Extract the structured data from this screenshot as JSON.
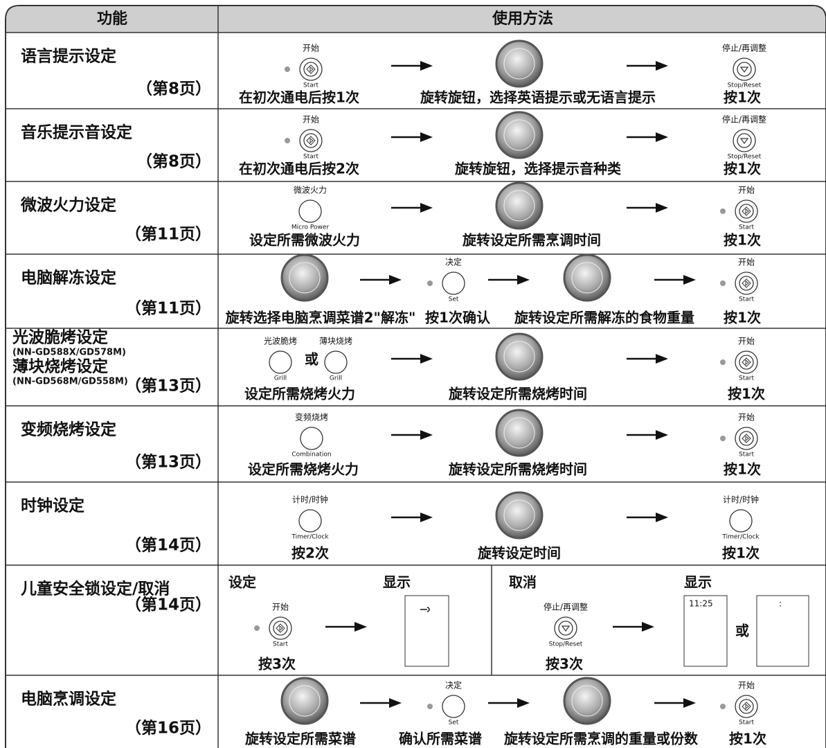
{
  "header": {
    "function": "功能",
    "usage": "使用方法"
  },
  "rows": [
    {
      "function": [
        "语言提示设定"
      ],
      "page": "（第8页）",
      "labels": [
        "开始",
        "Start",
        "停止/再调整",
        "Stop/Reset"
      ],
      "captions": [
        "在初次通电后按1次",
        "旋转旋钮，选择英语提示或无语言提示",
        "按1次"
      ]
    },
    {
      "function": [
        "音乐提示音设定"
      ],
      "page": "（第8页）",
      "labels": [
        "开始",
        "Start",
        "停止/再调整",
        "Stop/Reset"
      ],
      "captions": [
        "在初次通电后按2次",
        "旋转旋钮，选择提示音种类",
        "按1次"
      ]
    },
    {
      "function": [
        "微波火力设定"
      ],
      "page": "（第11页）",
      "labels": [
        "微波火力",
        "Micro Power",
        "开始",
        "Start"
      ],
      "captions": [
        "设定所需微波火力",
        "旋转设定所需烹调时间",
        "按1次"
      ]
    },
    {
      "function": [
        "电脑解冻设定"
      ],
      "page": "（第11页）",
      "labels": [
        "决定",
        "Set",
        "开始",
        "Start"
      ],
      "captions": [
        "旋转选择电脑烹调菜谱2\"解冻\"",
        "按1次确认",
        "旋转设定所需解冻的食物重量",
        "按1次"
      ]
    },
    {
      "function": [
        "光波脆烤设定",
        "(NN-GD588X/GD578M)",
        "薄块烧烤设定",
        "(NN-GD568M/GD558M)"
      ],
      "page": "（第13页）",
      "labels": [
        "光波脆烤",
        "Grill",
        "或",
        "薄块烧烤",
        "Grill",
        "开始",
        "Start"
      ],
      "captions": [
        "设定所需烧烤火力",
        "旋转设定所需烧烤时间",
        "按1次"
      ]
    },
    {
      "function": [
        "变频烧烤设定"
      ],
      "page": "（第13页）",
      "labels": [
        "变频烧烤",
        "Combination",
        "开始",
        "Start"
      ],
      "captions": [
        "设定所需烧烤火力",
        "旋转设定所需烧烤时间",
        "按1次"
      ]
    },
    {
      "function": [
        "时钟设定"
      ],
      "page": "（第14页）",
      "labels": [
        "计时/时钟",
        "Timer/Clock",
        "计时/时钟",
        "Timer/Clock"
      ],
      "captions": [
        "按2次",
        "旋转设定时间",
        "按1次"
      ]
    },
    {
      "function": [
        "儿童安全锁设定/取消"
      ],
      "page": "（第14页）",
      "labels": [
        "开始",
        "Start",
        "停止/再调整",
        "Stop/Reset",
        "或"
      ],
      "captions": [
        "按3次",
        "按3次"
      ],
      "headings": [
        "设定",
        "显示",
        "取消",
        "显示"
      ],
      "displays": [
        "11:25",
        ":"
      ]
    },
    {
      "function": [
        "电脑烹调设定"
      ],
      "page": "（第16页）",
      "labels": [
        "决定",
        "Set",
        "开始",
        "Start"
      ],
      "captions": [
        "旋转设定所需菜谱",
        "确认所需菜谱",
        "旋转设定所需烹调的重量或份数",
        "按1次"
      ]
    }
  ]
}
